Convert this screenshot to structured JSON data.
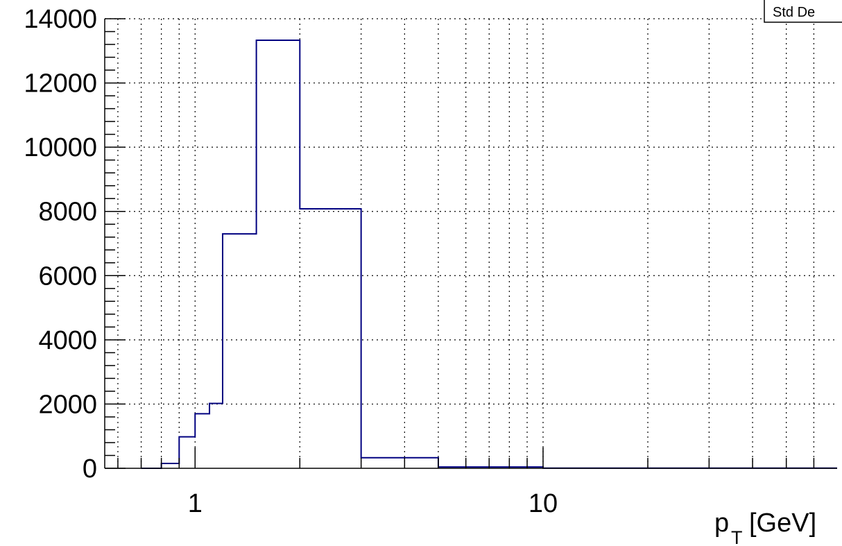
{
  "chart_data": {
    "type": "step",
    "xscale": "log",
    "xlim": [
      0.55,
      70
    ],
    "ylim": [
      0,
      14000
    ],
    "grid": true,
    "line_color": "#000080",
    "xlabel_main": "p",
    "xlabel_sub": "T",
    "xlabel_unit": "[GeV]",
    "stats_box_label": "Std De",
    "x_ticks": [
      {
        "value": 1,
        "label": "1"
      },
      {
        "value": 10,
        "label": "10"
      }
    ],
    "y_ticks": [
      {
        "value": 0,
        "label": "0"
      },
      {
        "value": 2000,
        "label": "2000"
      },
      {
        "value": 4000,
        "label": "4000"
      },
      {
        "value": 6000,
        "label": "6000"
      },
      {
        "value": 8000,
        "label": "8000"
      },
      {
        "value": 10000,
        "label": "10000"
      },
      {
        "value": 12000,
        "label": "12000"
      },
      {
        "value": 14000,
        "label": "14000"
      }
    ],
    "bins": [
      {
        "lo": 0.7,
        "hi": 0.8,
        "value": 0
      },
      {
        "lo": 0.8,
        "hi": 0.9,
        "value": 150
      },
      {
        "lo": 0.9,
        "hi": 1.0,
        "value": 980
      },
      {
        "lo": 1.0,
        "hi": 1.1,
        "value": 1700
      },
      {
        "lo": 1.1,
        "hi": 1.2,
        "value": 2020
      },
      {
        "lo": 1.2,
        "hi": 1.5,
        "value": 7300
      },
      {
        "lo": 1.5,
        "hi": 2.0,
        "value": 13330
      },
      {
        "lo": 2.0,
        "hi": 3.0,
        "value": 8080
      },
      {
        "lo": 3.0,
        "hi": 5.0,
        "value": 330
      },
      {
        "lo": 5.0,
        "hi": 10.0,
        "value": 40
      },
      {
        "lo": 10.0,
        "hi": 70.0,
        "value": 5
      }
    ]
  }
}
